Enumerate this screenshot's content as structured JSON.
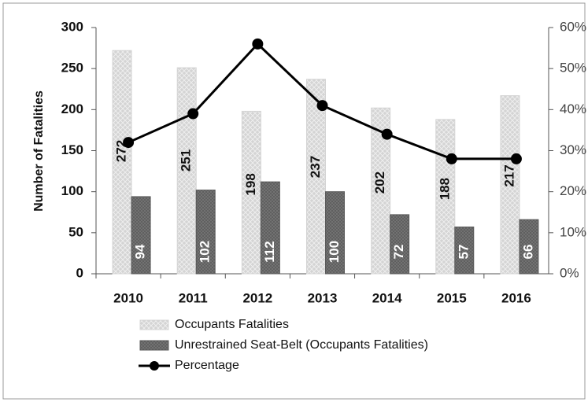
{
  "chart_data": {
    "type": "bar_line",
    "y_label": "Number of Fatalities",
    "categories": [
      "2010",
      "2011",
      "2012",
      "2013",
      "2014",
      "2015",
      "2016"
    ],
    "series": [
      {
        "name": "Occupants Fatalities",
        "color": "#d4d4d4",
        "values": [
          272,
          251,
          198,
          237,
          202,
          188,
          217
        ]
      },
      {
        "name": "Unrestrained Seat-Belt (Occupants Fatalities)",
        "color": "#5a5a5a",
        "values": [
          94,
          102,
          112,
          100,
          72,
          57,
          66
        ]
      },
      {
        "name": "Percentage",
        "color": "#000000",
        "axis": "y2",
        "values": [
          32,
          39,
          56,
          41,
          34,
          28,
          28
        ]
      }
    ],
    "ylim": [
      0,
      300
    ],
    "yticks": [
      0,
      50,
      100,
      150,
      200,
      250,
      300
    ],
    "y2lim": [
      0,
      60
    ],
    "y2ticks": [
      {
        "value": 0,
        "label": "0%"
      },
      {
        "value": 10,
        "label": "10%"
      },
      {
        "value": 20,
        "label": "20%"
      },
      {
        "value": 30,
        "label": "30%"
      },
      {
        "value": 40,
        "label": "40%"
      },
      {
        "value": 50,
        "label": "50%"
      },
      {
        "value": 60,
        "label": "60%"
      }
    ]
  }
}
